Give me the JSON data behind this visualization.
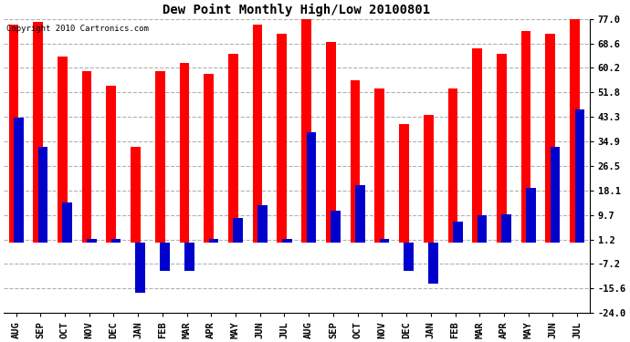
{
  "title": "Dew Point Monthly High/Low 20100801",
  "copyright": "Copyright 2010 Cartronics.com",
  "categories": [
    "AUG",
    "SEP",
    "OCT",
    "NOV",
    "DEC",
    "JAN",
    "FEB",
    "MAR",
    "APR",
    "MAY",
    "JUN",
    "JUL",
    "AUG",
    "SEP",
    "OCT",
    "NOV",
    "DEC",
    "JAN",
    "FEB",
    "MAR",
    "APR",
    "MAY",
    "JUN",
    "JUL"
  ],
  "highs": [
    75.0,
    76.0,
    64.0,
    59.0,
    54.0,
    33.0,
    59.0,
    62.0,
    58.0,
    65.0,
    75.0,
    72.0,
    78.0,
    69.0,
    56.0,
    53.0,
    41.0,
    44.0,
    53.0,
    67.0,
    65.0,
    73.0,
    72.0,
    77.0
  ],
  "lows": [
    43.0,
    33.0,
    14.0,
    1.5,
    1.5,
    -17.0,
    -9.5,
    -9.5,
    1.5,
    8.5,
    13.0,
    1.5,
    38.0,
    11.0,
    20.0,
    1.5,
    -9.5,
    -14.0,
    7.5,
    9.5,
    10.0,
    19.0,
    33.0,
    46.0
  ],
  "bar_color_high": "#ff0000",
  "bar_color_low": "#0000cc",
  "yticks": [
    -24.0,
    -15.6,
    -7.2,
    1.2,
    9.7,
    18.1,
    26.5,
    34.9,
    43.3,
    51.8,
    60.2,
    68.6,
    77.0
  ],
  "ylim": [
    -24.0,
    77.0
  ],
  "background_color": "#ffffff",
  "plot_bg_color": "#ffffff",
  "grid_color": "#b0b0b0",
  "bar_width": 0.4,
  "figwidth": 6.9,
  "figheight": 3.75,
  "dpi": 100,
  "title_fontsize": 10,
  "tick_fontsize": 7.5,
  "copyright_fontsize": 6.5
}
